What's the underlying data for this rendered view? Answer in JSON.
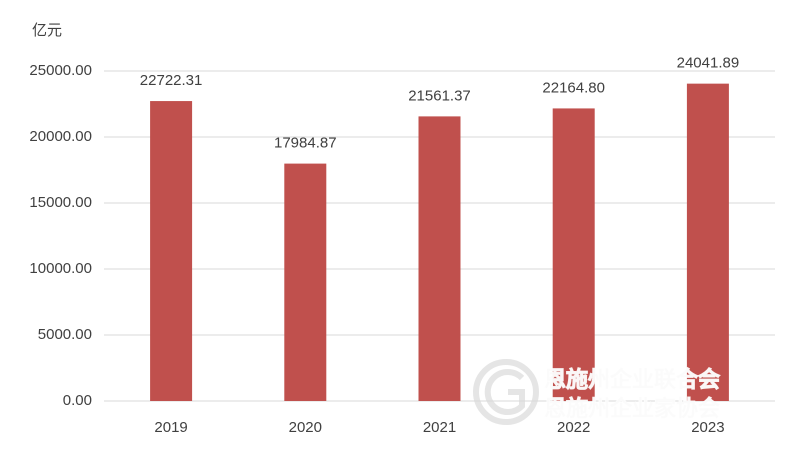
{
  "chart_data": {
    "type": "bar",
    "y_unit": "亿元",
    "categories": [
      "2019",
      "2020",
      "2021",
      "2022",
      "2023"
    ],
    "values": [
      22722.31,
      17984.87,
      21561.37,
      22164.8,
      24041.89
    ],
    "value_labels": [
      "22722.31",
      "17984.87",
      "21561.37",
      "22164.80",
      "24041.89"
    ],
    "color": "#c0504d",
    "ylim": [
      0,
      25000
    ],
    "yticks": [
      {
        "value": 0,
        "label": "0.00"
      },
      {
        "value": 5000,
        "label": "5000.00"
      },
      {
        "value": 10000,
        "label": "10000.00"
      },
      {
        "value": 15000,
        "label": "15000.00"
      },
      {
        "value": 20000,
        "label": "20000.00"
      },
      {
        "value": 25000,
        "label": "25000.00"
      }
    ],
    "grid": true
  },
  "watermark": [
    "恩施州企业联合会",
    "恩施州企业家协会"
  ]
}
